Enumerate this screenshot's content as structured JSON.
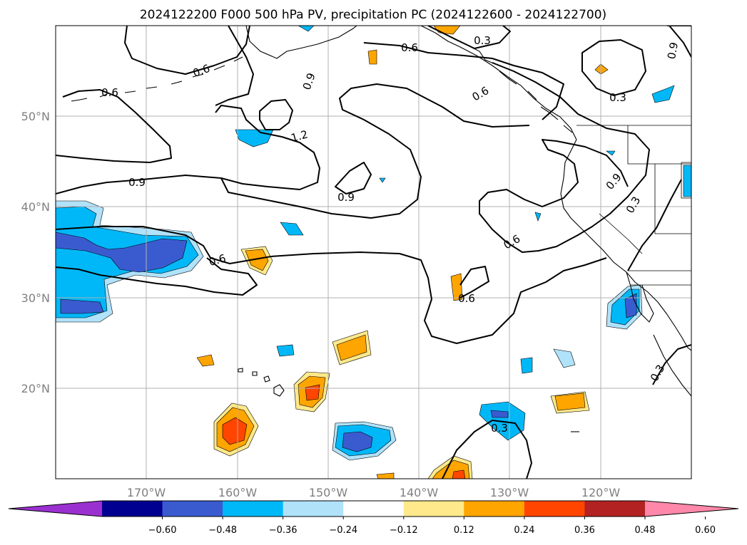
{
  "title": "2024122200 F000 500 hPa PV, precipitation PC (2024122600 - 2024122700)",
  "map": {
    "lon_range": [
      -180,
      -110
    ],
    "lat_range": [
      10,
      60
    ],
    "gridlines": true
  },
  "lat_ticks": [
    "50°N",
    "40°N",
    "30°N",
    "20°N"
  ],
  "lon_ticks": [
    "170°W",
    "160°W",
    "150°W",
    "140°W",
    "130°W",
    "120°W"
  ],
  "contour_labels": [
    "0.6",
    "0.6",
    "0.6",
    "0.9",
    "1.2",
    "0.9",
    "0.9",
    "0.6",
    "0.3",
    "0.9",
    "0.6",
    "0.3",
    "0.9",
    "0.3",
    "0.6",
    "0.6",
    "0.3",
    "0.3"
  ],
  "colorbar": {
    "ticks": [
      "−0.60",
      "−0.48",
      "−0.36",
      "−0.24",
      "−0.12",
      "0.12",
      "0.24",
      "0.36",
      "0.48",
      "0.60"
    ],
    "colors": [
      "#9b30d0",
      "#000090",
      "#3a5bd0",
      "#00b8f8",
      "#b0e2fa",
      "#ffffff",
      "#ffe98a",
      "#ffa500",
      "#ff4500",
      "#b22222",
      "#ff88aa"
    ]
  }
}
